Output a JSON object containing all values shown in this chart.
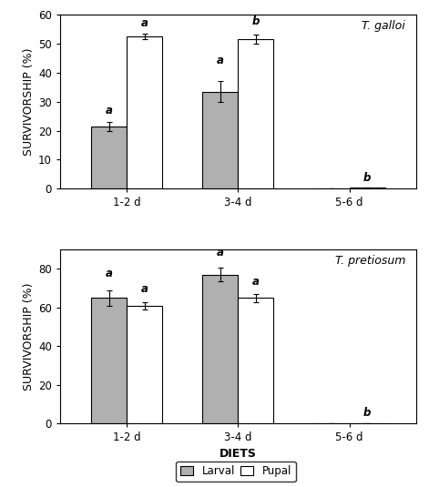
{
  "top": {
    "title": "T. galloi",
    "ylabel": "SURVIVORSHIP (%)",
    "ylim": [
      0,
      60
    ],
    "yticks": [
      0,
      10,
      20,
      30,
      40,
      50,
      60
    ],
    "categories": [
      "1-2 d",
      "3-4 d",
      "5-6 d"
    ],
    "larval_values": [
      21.5,
      33.5,
      0.0
    ],
    "pupal_values": [
      52.5,
      51.5,
      0.3
    ],
    "larval_errors": [
      1.5,
      3.5,
      0.0
    ],
    "pupal_errors": [
      1.0,
      1.5,
      0.0
    ],
    "larval_letters": [
      "a",
      "a",
      ""
    ],
    "pupal_letters": [
      "a",
      "b",
      "b"
    ],
    "larval_letter_offsets": [
      2.0,
      5.0,
      0
    ],
    "pupal_letter_offsets": [
      1.5,
      2.5,
      1.5
    ]
  },
  "bottom": {
    "title": "T. pretiosum",
    "ylabel": "SURVIVORSHIP (%)",
    "ylim": [
      0,
      90
    ],
    "yticks": [
      0,
      20,
      40,
      60,
      80
    ],
    "categories": [
      "1-2 d",
      "3-4 d",
      "5-6 d"
    ],
    "larval_values": [
      65.0,
      77.0,
      0.0
    ],
    "pupal_values": [
      61.0,
      65.0,
      0.3
    ],
    "larval_errors": [
      4.0,
      3.5,
      0.0
    ],
    "pupal_errors": [
      2.0,
      2.0,
      0.0
    ],
    "larval_letters": [
      "a",
      "a",
      ""
    ],
    "pupal_letters": [
      "a",
      "a",
      "b"
    ],
    "larval_letter_offsets": [
      5.5,
      5.0,
      0
    ],
    "pupal_letter_offsets": [
      3.5,
      3.5,
      2.5
    ]
  },
  "bar_width": 0.32,
  "larval_color": "#b0b0b0",
  "pupal_color": "#ffffff",
  "bar_edgecolor": "#000000",
  "xlabel": "DIETS",
  "font_size": 8.5,
  "title_fontsize": 9,
  "label_fontsize": 9,
  "tick_fontsize": 8.5
}
